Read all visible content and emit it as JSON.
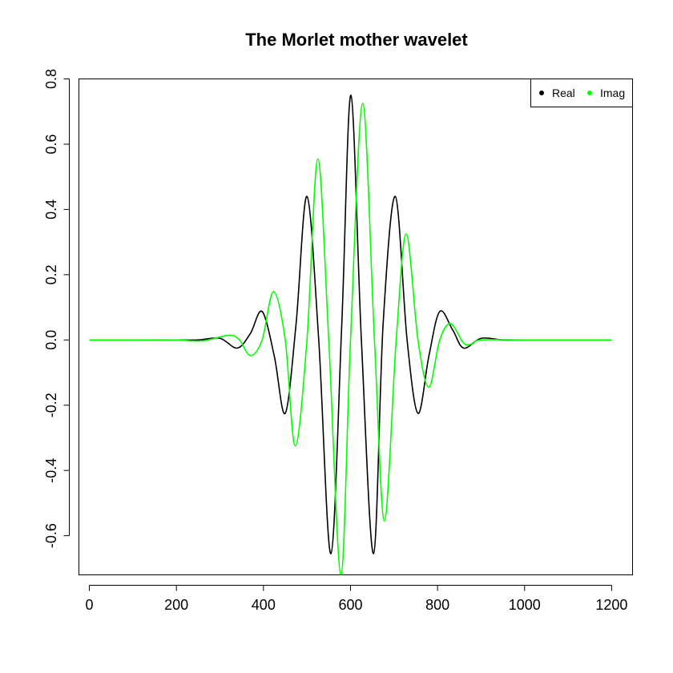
{
  "chart_data": {
    "type": "line",
    "title": "The Morlet mother wavelet",
    "xlabel": "",
    "ylabel": "",
    "xlim": [
      -24,
      1248
    ],
    "ylim": [
      -0.72,
      0.8
    ],
    "x_ticks": [
      0,
      200,
      400,
      600,
      800,
      1000,
      1200
    ],
    "x_tick_labels": [
      "0",
      "200",
      "400",
      "600",
      "800",
      "1000",
      "1200"
    ],
    "y_ticks": [
      -0.6,
      -0.4,
      -0.2,
      0.0,
      0.2,
      0.4,
      0.6,
      0.8
    ],
    "y_tick_labels": [
      "-0.6",
      "-0.4",
      "-0.2",
      "0.0",
      "0.2",
      "0.4",
      "0.6",
      "0.8"
    ],
    "grid": false,
    "legend_position": "top-right",
    "legend": [
      {
        "label": "Real",
        "color": "#000000"
      },
      {
        "label": "Imag",
        "color": "#00ff00"
      }
    ],
    "series": [
      {
        "name": "Real",
        "color": "#000000",
        "x": [
          0,
          100,
          200,
          250,
          300,
          340,
          370,
          397,
          425,
          450,
          475,
          500,
          527,
          555,
          580,
          601,
          625,
          653,
          675,
          703,
          730,
          755,
          780,
          805,
          835,
          860,
          900,
          950,
          1000,
          1100,
          1200
        ],
        "y": [
          0,
          0,
          0,
          0.0,
          0.005,
          -0.025,
          0.02,
          0.087,
          -0.05,
          -0.225,
          0.05,
          0.44,
          0.0,
          -0.655,
          0.05,
          0.75,
          0.0,
          -0.655,
          0.05,
          0.44,
          0.0,
          -0.225,
          -0.05,
          0.087,
          0.03,
          -0.025,
          0.005,
          0.0,
          0,
          0,
          0
        ]
      },
      {
        "name": "Imag",
        "color": "#00ff00",
        "x": [
          0,
          100,
          200,
          260,
          320,
          345,
          370,
          397,
          423,
          450,
          473,
          500,
          525,
          550,
          578,
          600,
          628,
          655,
          678,
          705,
          728,
          755,
          780,
          805,
          830,
          860,
          880,
          900,
          1000,
          1100,
          1200
        ],
        "y": [
          0,
          0,
          0,
          -0.003,
          0.014,
          0.0,
          -0.048,
          0.0,
          0.148,
          0.0,
          -0.325,
          0.0,
          0.555,
          0.0,
          -0.72,
          0.0,
          0.725,
          0.0,
          -0.555,
          0.0,
          0.325,
          0.0,
          -0.145,
          0.0,
          0.05,
          -0.01,
          -0.012,
          0.0,
          0,
          0,
          0
        ]
      }
    ]
  }
}
